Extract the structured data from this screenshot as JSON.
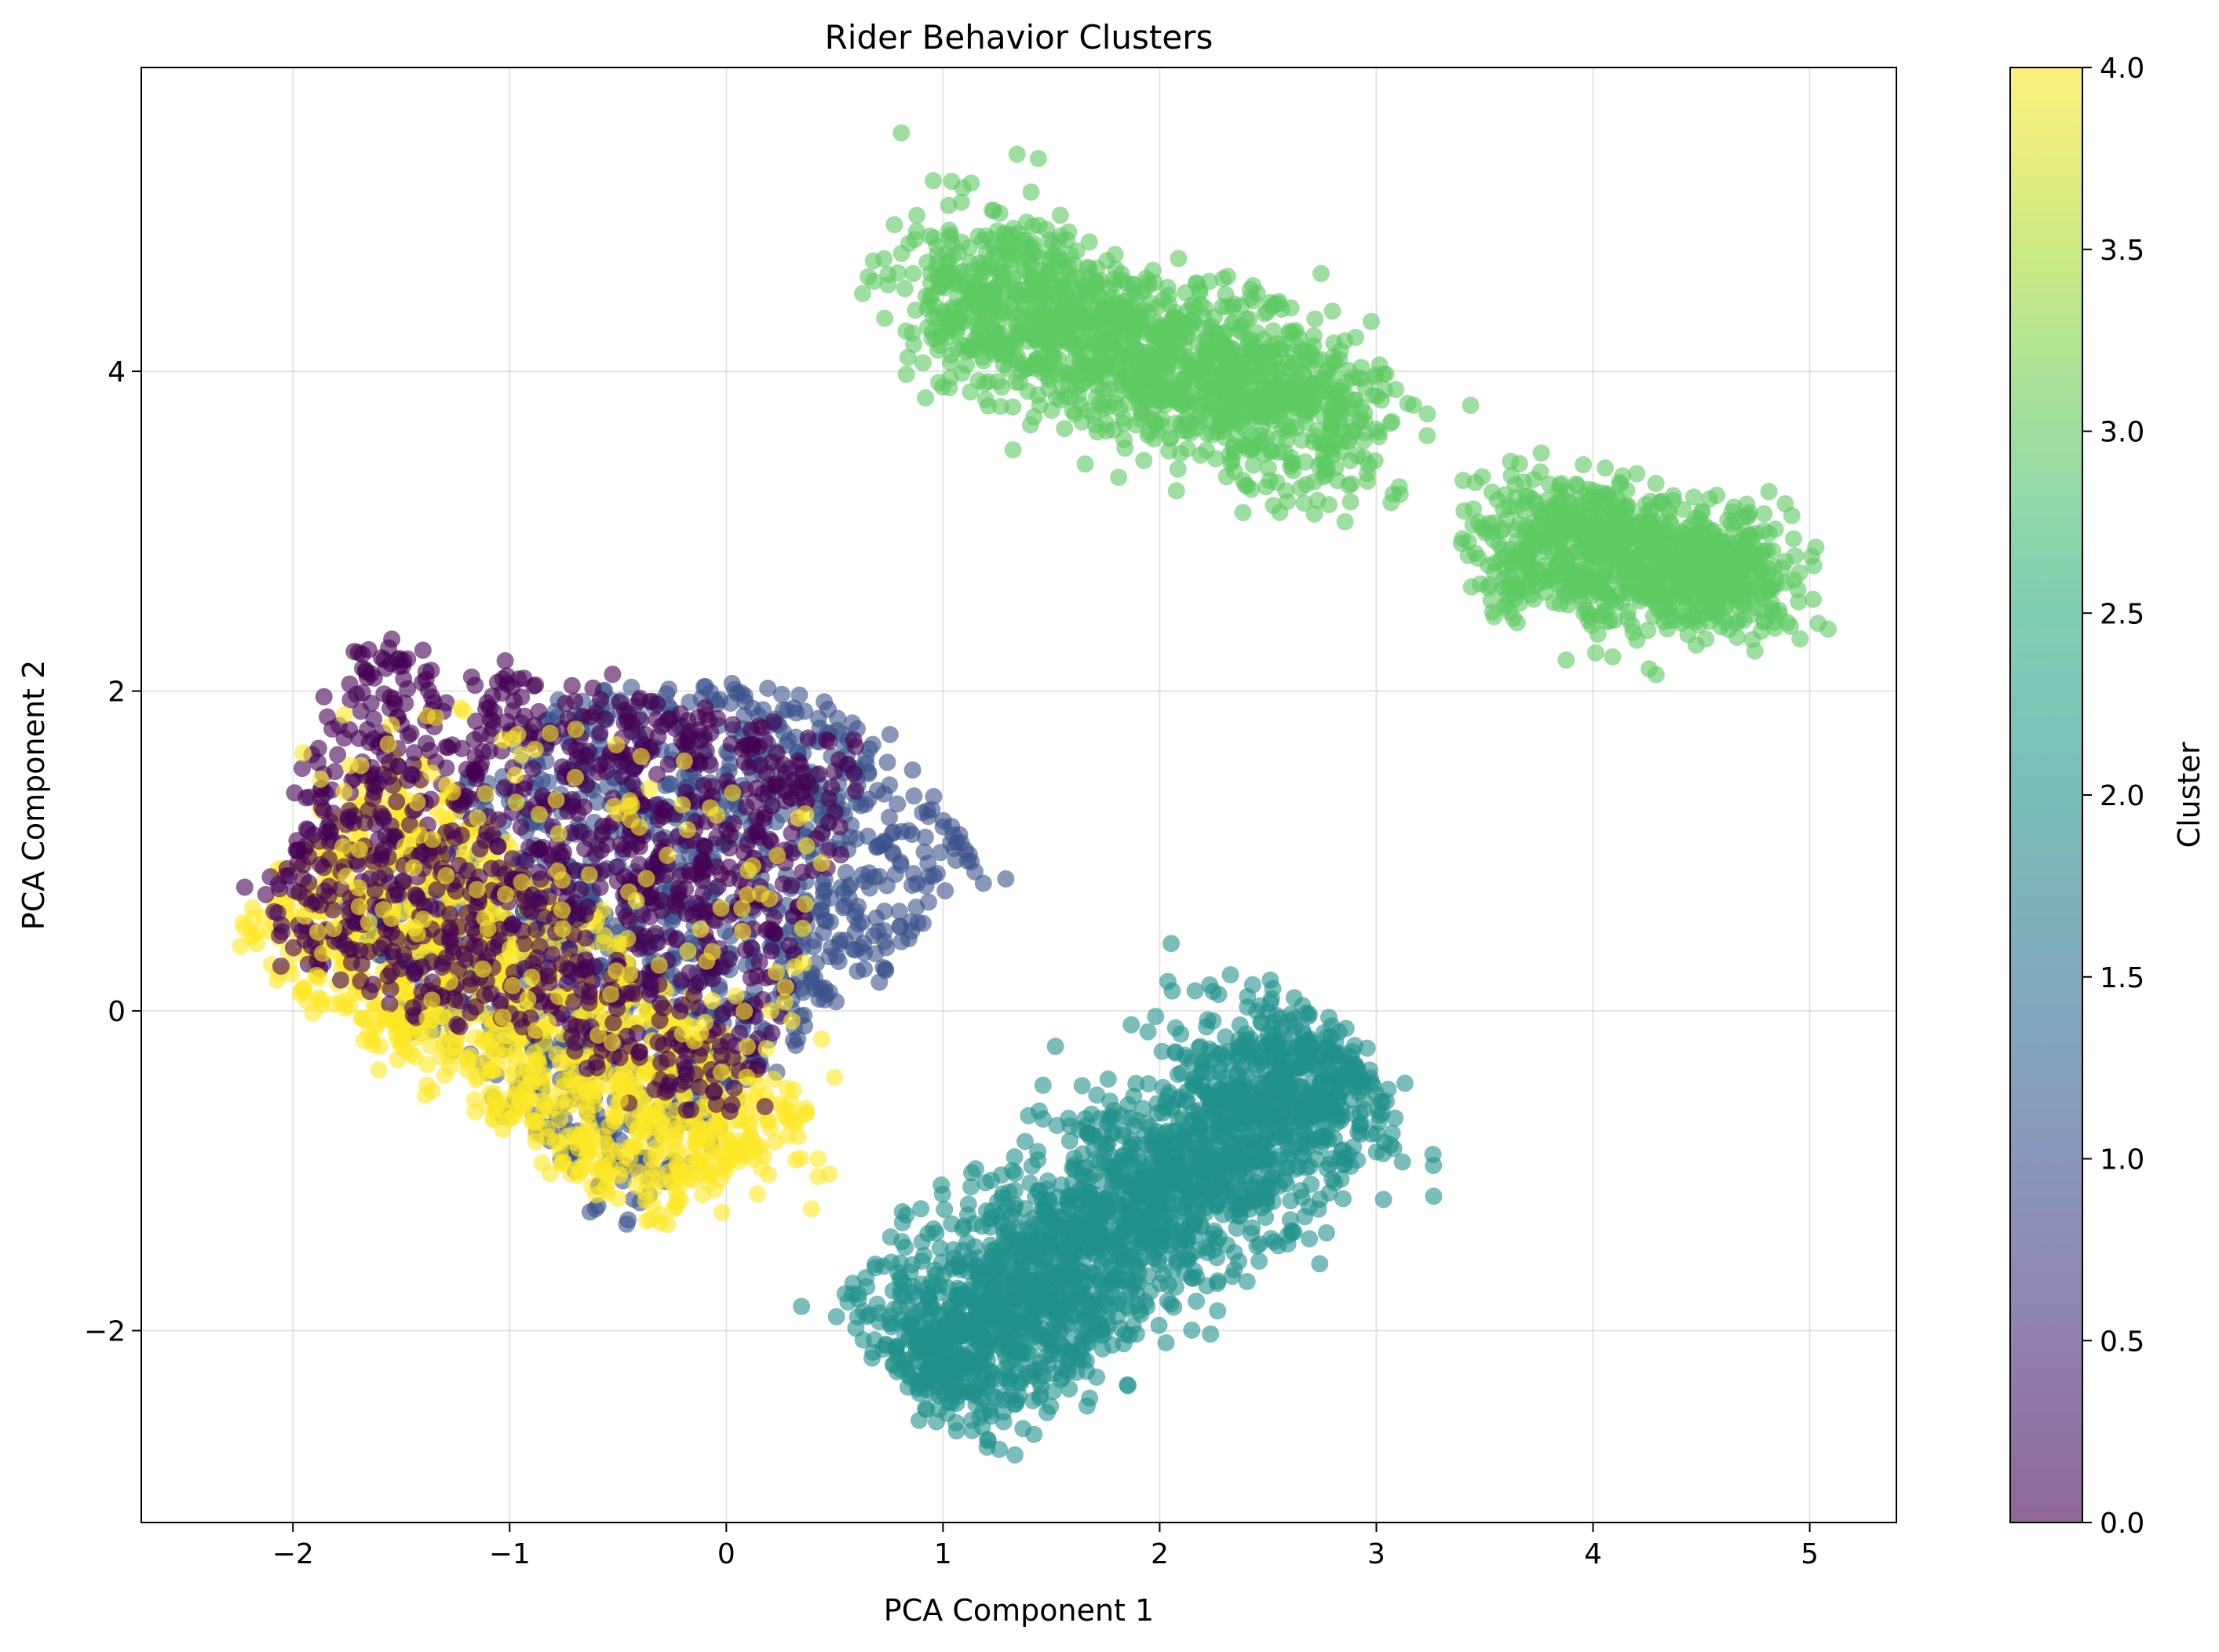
{
  "chart_data": {
    "type": "scatter",
    "title": "Rider Behavior Clusters",
    "xlabel": "PCA Component 1",
    "ylabel": "PCA Component 2",
    "xlim": [
      -2.7,
      5.4
    ],
    "ylim": [
      -3.2,
      5.9
    ],
    "xticks": [
      -2,
      -1,
      0,
      1,
      2,
      3,
      4,
      5
    ],
    "xtick_labels": [
      "−2",
      "−1",
      "0",
      "1",
      "2",
      "3",
      "4",
      "5"
    ],
    "yticks": [
      -2,
      0,
      2,
      4
    ],
    "ytick_labels": [
      "−2",
      "0",
      "2",
      "4"
    ],
    "grid": true,
    "colormap": "viridis",
    "marker_alpha": 0.6,
    "colorbar": {
      "label": "Cluster",
      "range": [
        0.0,
        4.0
      ],
      "ticks": [
        0.0,
        0.5,
        1.0,
        1.5,
        2.0,
        2.5,
        3.0,
        3.5,
        4.0
      ],
      "tick_labels": [
        "0.0",
        "0.5",
        "1.0",
        "1.5",
        "2.0",
        "2.5",
        "3.0",
        "3.5",
        "4.0"
      ]
    },
    "clusters": [
      {
        "cluster": 1,
        "color": "#3b528b",
        "region": "diagonal band from (-0.5,-1.4) to (1.2,0.9), upper-left to (-0.3,2.0)",
        "x_range": [
          -1.8,
          1.2
        ],
        "y_range": [
          -1.4,
          2.0
        ]
      },
      {
        "cluster": 0,
        "color": "#440154",
        "region": "left cluster, upper part",
        "x_range": [
          -2.2,
          0.5
        ],
        "y_range": [
          -1.1,
          2.5
        ]
      },
      {
        "cluster": 4,
        "color": "#fde725",
        "region": "left cluster, lower-left part",
        "x_range": [
          -2.4,
          0.8
        ],
        "y_range": [
          -1.5,
          1.8
        ]
      },
      {
        "cluster": 2,
        "color": "#21918c",
        "region": "elongated diagonal cluster from (0.6,-2.8) to (3.1,0.6)",
        "x_range": [
          0.6,
          3.1
        ],
        "y_range": [
          -2.8,
          0.6
        ]
      },
      {
        "cluster": 3,
        "color": "#5ec962",
        "region": "upper cluster from (0.9,3.0) to (3.1,5.5) and right cluster from (3.2,1.8) to (5.0,3.8)",
        "x_range": [
          0.9,
          5.0
        ],
        "y_range": [
          1.8,
          5.5
        ]
      }
    ]
  }
}
